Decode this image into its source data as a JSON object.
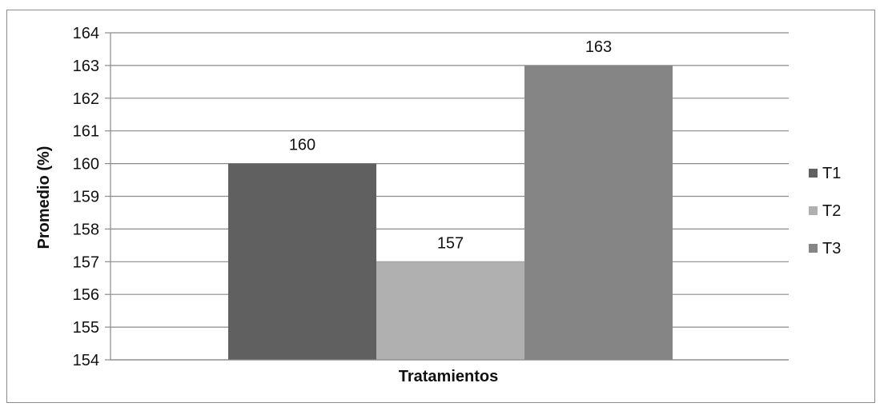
{
  "chart_data": {
    "type": "bar",
    "xlabel": "Tratamientos",
    "ylabel": "Promedio (%)",
    "ylim": [
      154,
      164
    ],
    "yticks": [
      154,
      155,
      156,
      157,
      158,
      159,
      160,
      161,
      162,
      163,
      164
    ],
    "grid": true,
    "legend_position": "right",
    "series": [
      {
        "name": "T1",
        "values": [
          160
        ],
        "color": "#606060"
      },
      {
        "name": "T2",
        "values": [
          157
        ],
        "color": "#b0b0b0"
      },
      {
        "name": "T3",
        "values": [
          163
        ],
        "color": "#858585"
      }
    ],
    "data_labels": [
      "160",
      "157",
      "163"
    ]
  }
}
